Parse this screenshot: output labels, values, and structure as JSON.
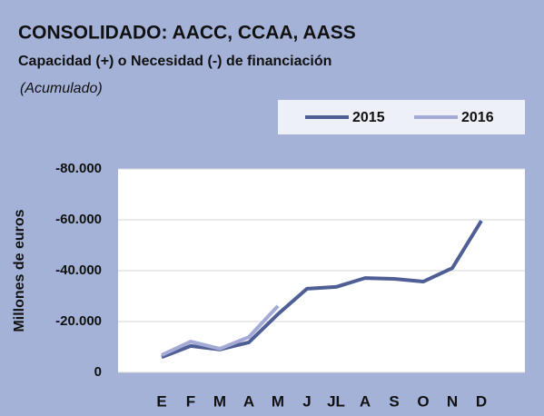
{
  "chart_data": {
    "type": "line",
    "title": "CONSOLIDADO: AACC, CCAA, AASS",
    "subtitle": "Capacidad (+) o Necesidad (-) de financiación",
    "note": "(Acumulado)",
    "ylabel": "Millones de euros",
    "categories": [
      "E",
      "F",
      "M",
      "A",
      "M",
      "J",
      "JL",
      "A",
      "S",
      "O",
      "N",
      "D"
    ],
    "series": [
      {
        "name": "2015",
        "color": "#4f5f96",
        "values": [
          -6000,
          -10400,
          -9000,
          -11800,
          -22900,
          -32900,
          -33600,
          -37100,
          -36800,
          -35700,
          -41000,
          -59600
        ]
      },
      {
        "name": "2016",
        "color": "#a3aad6",
        "values": [
          -6800,
          -12100,
          -9300,
          -13900,
          -26100,
          null,
          null,
          null,
          null,
          null,
          null,
          null
        ]
      }
    ],
    "ylim": [
      0,
      -80000
    ],
    "yticks": [
      0,
      {
        "value": -20000,
        "label": "-20.000"
      },
      {
        "value": -40000,
        "label": "-40.000"
      },
      {
        "value": -60000,
        "label": "-60.000"
      },
      {
        "value": -80000,
        "label": "-80.000"
      }
    ],
    "grid": true,
    "legend": "top-right"
  }
}
